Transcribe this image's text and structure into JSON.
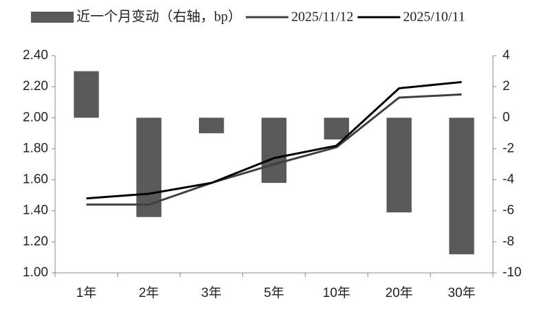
{
  "chart_data": {
    "type": "bar",
    "categories": [
      "1年",
      "2年",
      "3年",
      "5年",
      "10年",
      "20年",
      "30年"
    ],
    "series": [
      {
        "name": "近一个月变动（右轴，bp）",
        "type": "bar",
        "axis": "y2",
        "color": "#595959",
        "values": [
          3,
          -6.4,
          -1.0,
          -4.2,
          -1.4,
          -6.1,
          -8.8
        ]
      },
      {
        "name": "2025/11/12",
        "type": "line",
        "color": "#404040",
        "values": [
          1.44,
          1.44,
          1.58,
          1.7,
          1.81,
          2.13,
          2.15
        ]
      },
      {
        "name": "2025/10/11",
        "type": "line",
        "color": "#000000",
        "values": [
          1.48,
          1.51,
          1.58,
          1.74,
          1.82,
          2.19,
          2.23
        ]
      }
    ],
    "ylim": [
      1.0,
      2.4
    ],
    "yticks": [
      {
        "value": 1.0,
        "label": "1.00"
      },
      {
        "value": 1.2,
        "label": "1.20"
      },
      {
        "value": 1.4,
        "label": "1.40"
      },
      {
        "value": 1.6,
        "label": "1.60"
      },
      {
        "value": 1.8,
        "label": "1.80"
      },
      {
        "value": 2.0,
        "label": "2.00"
      },
      {
        "value": 2.2,
        "label": "2.20"
      },
      {
        "value": 2.4,
        "label": "2.40"
      }
    ],
    "y2lim": [
      -10,
      4
    ],
    "y2ticks": [
      -10,
      -8,
      -6,
      -4,
      -2,
      0,
      2,
      4
    ],
    "grid": false,
    "legend": "top"
  }
}
